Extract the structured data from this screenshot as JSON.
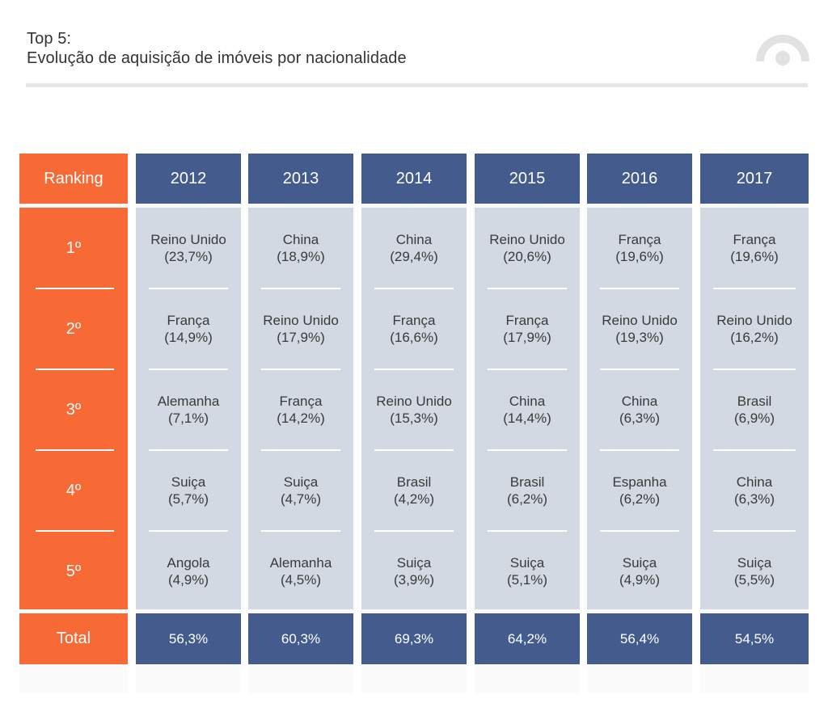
{
  "title": {
    "line1": "Top 5:",
    "line2": "Evolução de aquisição de imóveis por nacionalidade"
  },
  "colors": {
    "rank_orange": "#f76a35",
    "header_blue": "#435c8d",
    "cell_gray": "#d2d9e2",
    "text_dark": "#3a3a3a"
  },
  "chart_data": {
    "type": "table",
    "title": "Top 5: Evolução de aquisição de imóveis por nacionalidade",
    "ranking_label": "Ranking",
    "total_label": "Total",
    "ranks": [
      "1º",
      "2º",
      "3º",
      "4º",
      "5º"
    ],
    "years": [
      {
        "year": "2012",
        "entries": [
          {
            "country": "Reino Unido",
            "share": "(23,7%)"
          },
          {
            "country": "França",
            "share": "(14,9%)"
          },
          {
            "country": "Alemanha",
            "share": "(7,1%)"
          },
          {
            "country": "Suiça",
            "share": "(5,7%)"
          },
          {
            "country": "Angola",
            "share": "(4,9%)"
          }
        ],
        "total": "56,3%"
      },
      {
        "year": "2013",
        "entries": [
          {
            "country": "China",
            "share": "(18,9%)"
          },
          {
            "country": "Reino Unido",
            "share": "(17,9%)"
          },
          {
            "country": "França",
            "share": "(14,2%)"
          },
          {
            "country": "Suiça",
            "share": "(4,7%)"
          },
          {
            "country": "Alemanha",
            "share": "(4,5%)"
          }
        ],
        "total": "60,3%"
      },
      {
        "year": "2014",
        "entries": [
          {
            "country": "China",
            "share": "(29,4%)"
          },
          {
            "country": "França",
            "share": "(16,6%)"
          },
          {
            "country": "Reino Unido",
            "share": "(15,3%)"
          },
          {
            "country": "Brasil",
            "share": "(4,2%)"
          },
          {
            "country": "Suiça",
            "share": "(3,9%)"
          }
        ],
        "total": "69,3%"
      },
      {
        "year": "2015",
        "entries": [
          {
            "country": "Reino Unido",
            "share": "(20,6%)"
          },
          {
            "country": "França",
            "share": "(17,9%)"
          },
          {
            "country": "China",
            "share": "(14,4%)"
          },
          {
            "country": "Brasil",
            "share": "(6,2%)"
          },
          {
            "country": "Suiça",
            "share": "(5,1%)"
          }
        ],
        "total": "64,2%"
      },
      {
        "year": "2016",
        "entries": [
          {
            "country": "França",
            "share": "(19,6%)"
          },
          {
            "country": "Reino Unido",
            "share": "(19,3%)"
          },
          {
            "country": "China",
            "share": "(6,3%)"
          },
          {
            "country": "Espanha",
            "share": "(6,2%)"
          },
          {
            "country": "Suiça",
            "share": "(4,9%)"
          }
        ],
        "total": "56,4%"
      },
      {
        "year": "2017",
        "entries": [
          {
            "country": "França",
            "share": "(19,6%)"
          },
          {
            "country": "Reino Unido",
            "share": "(16,2%)"
          },
          {
            "country": "Brasil",
            "share": "(6,9%)"
          },
          {
            "country": "China",
            "share": "(6,3%)"
          },
          {
            "country": "Suiça",
            "share": "(5,5%)"
          }
        ],
        "total": "54,5%"
      }
    ]
  },
  "logo": {
    "icon": "brand-arc-logo-icon"
  }
}
